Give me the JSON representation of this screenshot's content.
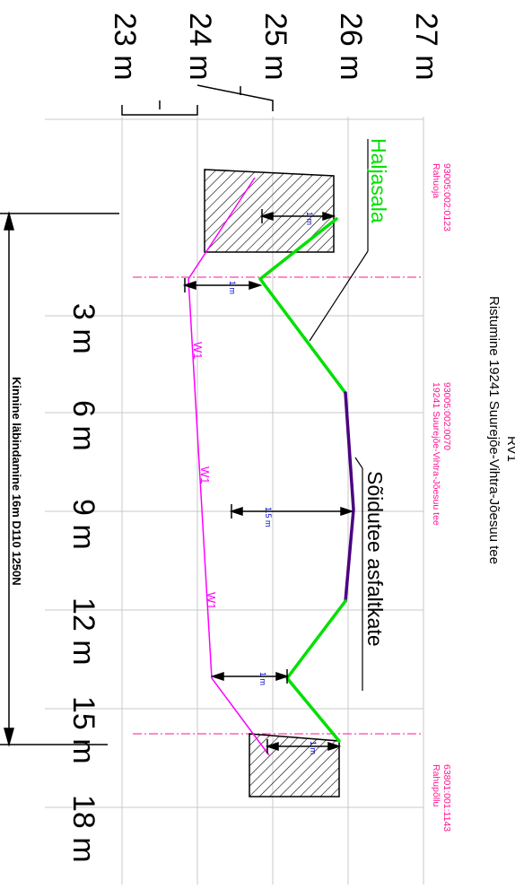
{
  "title": {
    "code": "RV1",
    "subtitle": "Ristumine 19241 Suurejõe-Vihtra-Jõesuu tee"
  },
  "elevation_labels": [
    "27 m",
    "26 m",
    "25 m",
    "24 m",
    "23 m"
  ],
  "distance_labels": [
    "3 m",
    "6 m",
    "9 m",
    "12 m",
    "15 m",
    "18 m"
  ],
  "parcels": [
    {
      "id": "93005:002:0123",
      "name": "Rahuoja"
    },
    {
      "id": "93005:002:0070",
      "name": "19241 Suurejõe-Vihtra-Jõesuu tee"
    },
    {
      "id": "63801:001:1143",
      "name": "Rahupõllu"
    }
  ],
  "surface_labels": {
    "green": "Haljasala",
    "road": "Sõidutee asfaltkate"
  },
  "pipe": {
    "label": "W1",
    "description": "Kinnine läbindamine 16m D110 1250N"
  },
  "depth_labels": [
    "1 m",
    "1 m",
    "1.5 m",
    "1 m",
    "1 m"
  ],
  "colors": {
    "green": "#00e000",
    "road": "#4b0082",
    "pipe": "#ff00ff",
    "parcel": "#ff1493",
    "grid": "#c8c8c8",
    "depth_text": "#0000cc"
  }
}
